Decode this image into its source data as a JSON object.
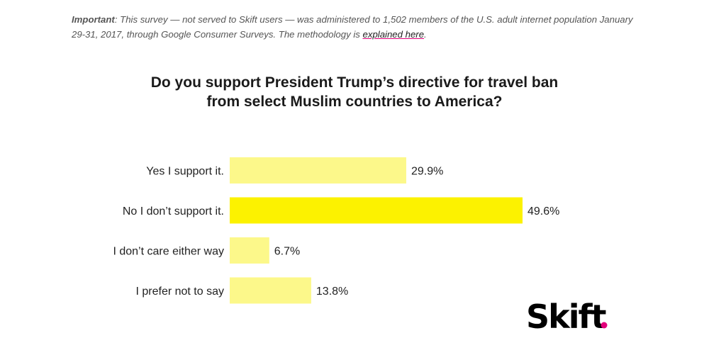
{
  "note": {
    "label": "Important",
    "text": ": This survey — not served to Skift users — was administered to 1,502 members of the U.S. adult internet population January 29-31, 2017, through Google Consumer Surveys. The methodology is ",
    "link_text": "explained here",
    "suffix": "."
  },
  "chart_data": {
    "type": "bar",
    "orientation": "horizontal",
    "title": "Do you support President Trump’s directive for travel ban from select Muslim countries to America?",
    "title_lines": [
      "Do you support President Trump’s directive for travel ban",
      "from select Muslim countries to America?"
    ],
    "categories": [
      "Yes I support it.",
      "No I don’t support it.",
      "I don’t care either way",
      "I prefer not to say"
    ],
    "values": [
      29.9,
      49.6,
      6.7,
      13.8
    ],
    "value_labels": [
      "29.9%",
      "49.6%",
      "6.7%",
      "13.8%"
    ],
    "highlight_index": 1,
    "colors": {
      "bar": "#fcf88a",
      "highlight": "#fcf200",
      "logo_dot": "#e3007b"
    },
    "xlim": [
      0,
      50
    ],
    "xlabel": "",
    "ylabel": ""
  },
  "logo": {
    "text": "Skift"
  }
}
